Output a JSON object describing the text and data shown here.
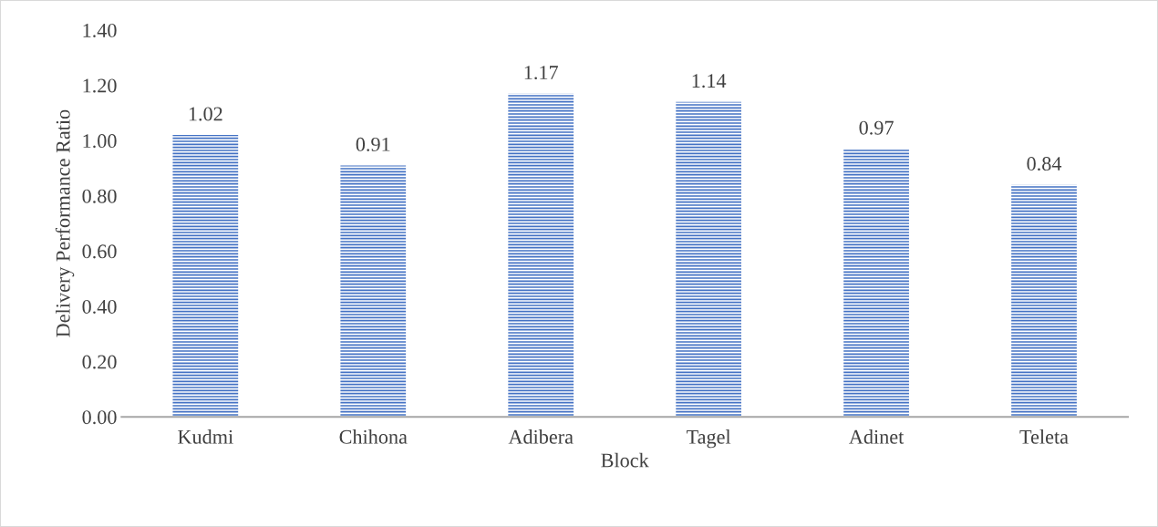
{
  "chart_data": {
    "type": "bar",
    "xlabel": "Block",
    "ylabel": "Delivery Performance Ratio",
    "categories": [
      "Kudmi",
      "Chihona",
      "Adibera",
      "Tagel",
      "Adinet",
      "Teleta"
    ],
    "values": [
      1.02,
      0.91,
      1.17,
      1.14,
      0.97,
      0.84
    ],
    "color": "#4472c4",
    "ylim": [
      0,
      1.4
    ],
    "yticks": [
      {
        "value": 0,
        "label": "0.00"
      },
      {
        "value": 0.2,
        "label": "0.20"
      },
      {
        "value": 0.4,
        "label": "0.40"
      },
      {
        "value": 0.6,
        "label": "0.60"
      },
      {
        "value": 0.8,
        "label": "0.80"
      },
      {
        "value": 1.0,
        "label": "1.00"
      },
      {
        "value": 1.2,
        "label": "1.20"
      },
      {
        "value": 1.4,
        "label": "1.40"
      }
    ],
    "data_labels": true,
    "grid": false,
    "legend": false
  }
}
